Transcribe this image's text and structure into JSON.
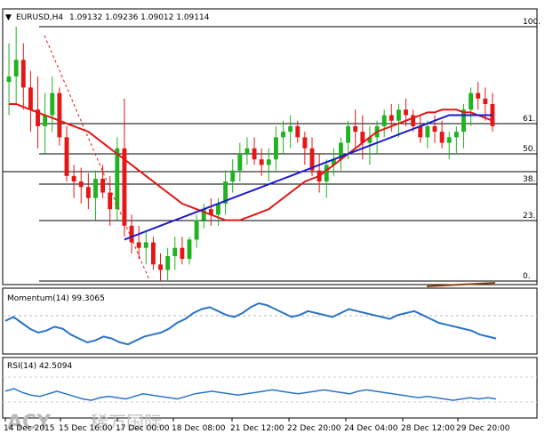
{
  "header": {
    "symbol": "EURUSD,H4",
    "ohlc": "1.09132 1.09236 1.09012 1.09114"
  },
  "watermark": {
    "brand": "ACY",
    "cn": "稀万国际"
  },
  "colors": {
    "bull": "#1fb31f",
    "bear": "#e41616",
    "ma_red": "#e41616",
    "ma_blue": "#1a1ad0",
    "fib": "#000000",
    "momentum": "#2a73c8",
    "rsi": "#2a73c8",
    "brown": "#8b4513"
  },
  "chart_data": [
    {
      "type": "candlestick",
      "title": "EURUSD,H4 1.09132 1.09236 1.09012 1.09114",
      "fib_levels": [
        {
          "label": "100.",
          "value": 100
        },
        {
          "label": "61.",
          "value": 61.8
        },
        {
          "label": "50.",
          "value": 50
        },
        {
          "label": "38.",
          "value": 38.2
        },
        {
          "label": "23.",
          "value": 23.6
        },
        {
          "label": "0.",
          "value": 0
        }
      ],
      "x_ticks": [
        "14 Dec 2015",
        "15 Dec 16:00",
        "17 Dec 00:00",
        "18 Dec 08:00",
        "21 Dec 12:00",
        "22 Dec 20:00",
        "24 Dec 04:00",
        "28 Dec 12:00",
        "29 Dec 20:00"
      ],
      "candles": [
        [
          38,
          26,
          52,
          40
        ],
        [
          40,
          30,
          58,
          46
        ],
        [
          46,
          28,
          52,
          36
        ],
        [
          36,
          20,
          42,
          28
        ],
        [
          28,
          14,
          40,
          22
        ],
        [
          22,
          12,
          34,
          26
        ],
        [
          26,
          20,
          40,
          34
        ],
        [
          34,
          15,
          36,
          18
        ],
        [
          18,
          2,
          22,
          4
        ],
        [
          4,
          -4,
          8,
          2
        ],
        [
          2,
          -6,
          7,
          0
        ],
        [
          0,
          -8,
          5,
          -4
        ],
        [
          -4,
          -12,
          6,
          3
        ],
        [
          3,
          -4,
          8,
          -2
        ],
        [
          -2,
          -14,
          4,
          -8
        ],
        [
          -8,
          -12,
          18,
          14
        ],
        [
          14,
          -18,
          32,
          -14
        ],
        [
          -14,
          -24,
          -10,
          -20
        ],
        [
          -20,
          -26,
          -14,
          -22
        ],
        [
          -22,
          -28,
          -16,
          -20
        ],
        [
          -20,
          -30,
          -18,
          -28
        ],
        [
          -28,
          -34,
          -24,
          -30
        ],
        [
          -30,
          -34,
          -22,
          -25
        ],
        [
          -25,
          -30,
          -18,
          -22
        ],
        [
          -22,
          -28,
          -18,
          -26
        ],
        [
          -26,
          -28,
          -18,
          -19
        ],
        [
          -19,
          -22,
          -10,
          -12
        ],
        [
          -12,
          -15,
          -6,
          -8
        ],
        [
          -8,
          -14,
          -4,
          -10
        ],
        [
          -10,
          -14,
          -4,
          -6
        ],
        [
          -6,
          -10,
          6,
          2
        ],
        [
          2,
          -2,
          10,
          6
        ],
        [
          6,
          2,
          16,
          12
        ],
        [
          12,
          8,
          18,
          14
        ],
        [
          14,
          8,
          18,
          10
        ],
        [
          10,
          4,
          14,
          8
        ],
        [
          8,
          2,
          14,
          10
        ],
        [
          10,
          6,
          22,
          18
        ],
        [
          18,
          12,
          24,
          20
        ],
        [
          20,
          14,
          26,
          22
        ],
        [
          22,
          16,
          24,
          18
        ],
        [
          18,
          8,
          20,
          14
        ],
        [
          14,
          4,
          18,
          6
        ],
        [
          6,
          -2,
          12,
          2
        ],
        [
          2,
          -4,
          10,
          8
        ],
        [
          8,
          4,
          14,
          10
        ],
        [
          10,
          6,
          18,
          16
        ],
        [
          16,
          10,
          24,
          22
        ],
        [
          22,
          14,
          28,
          20
        ],
        [
          20,
          10,
          26,
          16
        ],
        [
          16,
          8,
          22,
          18
        ],
        [
          18,
          12,
          24,
          22
        ],
        [
          22,
          18,
          28,
          26
        ],
        [
          26,
          20,
          30,
          24
        ],
        [
          24,
          18,
          30,
          28
        ],
        [
          28,
          22,
          32,
          26
        ],
        [
          26,
          20,
          28,
          22
        ],
        [
          22,
          16,
          26,
          18
        ],
        [
          18,
          14,
          24,
          22
        ],
        [
          22,
          16,
          26,
          20
        ],
        [
          20,
          14,
          24,
          16
        ],
        [
          16,
          10,
          20,
          18
        ],
        [
          18,
          12,
          22,
          20
        ],
        [
          20,
          14,
          30,
          28
        ],
        [
          28,
          22,
          36,
          34
        ],
        [
          34,
          28,
          38,
          32
        ],
        [
          32,
          24,
          36,
          30
        ],
        [
          30,
          20,
          34,
          22
        ]
      ],
      "ma_red": [
        30,
        30,
        29,
        28,
        27,
        26,
        25,
        24,
        23,
        22,
        21,
        20,
        18,
        16,
        14,
        12,
        10,
        8,
        6,
        4,
        2,
        0,
        -2,
        -4,
        -6,
        -7,
        -8,
        -9,
        -10,
        -11,
        -12,
        -12,
        -12,
        -11,
        -10,
        -9,
        -8,
        -6,
        -4,
        -2,
        0,
        2,
        3,
        4,
        6,
        8,
        10,
        12,
        14,
        16,
        18,
        20,
        21,
        22,
        23,
        24,
        25,
        26,
        27,
        27,
        28,
        28,
        28,
        27,
        27,
        26,
        25,
        24
      ],
      "ma_blue": [
        -30,
        -30,
        -30,
        -30,
        -29,
        -29,
        -28,
        -28,
        -27,
        -26,
        -25,
        -24,
        -23,
        -22,
        -21,
        -20,
        -19,
        -18,
        -17,
        -16,
        -15,
        -14,
        -13,
        -12,
        -11,
        -10,
        -9,
        -8,
        -7,
        -6,
        -5,
        -4,
        -3,
        -2,
        -1,
        0,
        1,
        2,
        3,
        4,
        5,
        6,
        7,
        8,
        9,
        10,
        11,
        12,
        13,
        14,
        15,
        16,
        17,
        18,
        19,
        20,
        21,
        22,
        23,
        24,
        25,
        26,
        26,
        26,
        26,
        26,
        26,
        26
      ]
    },
    {
      "type": "line",
      "title": "Momentum(14) 99.3065",
      "values": [
        100.2,
        100.4,
        100.1,
        99.8,
        99.6,
        99.7,
        99.9,
        99.8,
        99.5,
        99.3,
        99.1,
        99.2,
        99.4,
        99.3,
        99.1,
        99.0,
        99.2,
        99.4,
        99.5,
        99.6,
        99.8,
        100.1,
        100.3,
        100.6,
        100.8,
        100.9,
        100.7,
        100.5,
        100.4,
        100.6,
        100.9,
        101.1,
        101.0,
        100.8,
        100.6,
        100.4,
        100.5,
        100.7,
        100.6,
        100.5,
        100.4,
        100.6,
        100.8,
        100.7,
        100.6,
        100.5,
        100.4,
        100.3,
        100.5,
        100.6,
        100.7,
        100.5,
        100.3,
        100.1,
        100.0,
        99.9,
        99.8,
        99.7,
        99.5,
        99.4,
        99.3
      ]
    },
    {
      "type": "line",
      "title": "RSI(14) 42.5094",
      "values": [
        48,
        50,
        47,
        45,
        44,
        46,
        48,
        46,
        44,
        42,
        41,
        43,
        44,
        43,
        42,
        44,
        46,
        45,
        44,
        43,
        42,
        44,
        46,
        47,
        48,
        47,
        46,
        45,
        46,
        47,
        48,
        49,
        48,
        47,
        46,
        47,
        48,
        49,
        48,
        47,
        46,
        48,
        49,
        48,
        47,
        46,
        45,
        44,
        43,
        44,
        43,
        42,
        41,
        42,
        43,
        42,
        43,
        42
      ]
    }
  ]
}
